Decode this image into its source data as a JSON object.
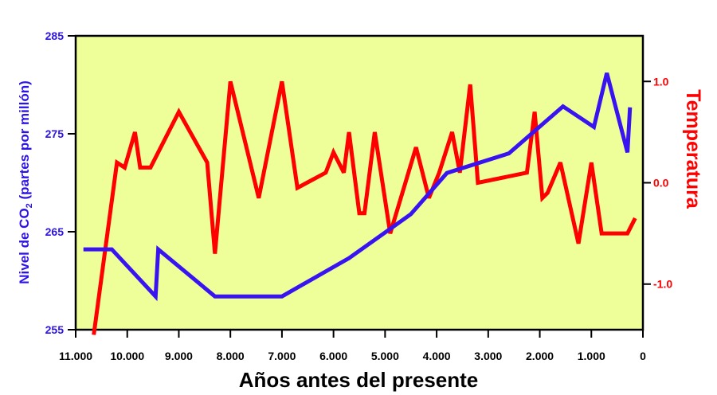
{
  "chart_data": {
    "type": "line",
    "title": "",
    "colors": {
      "plot_bg": "#eeff99",
      "co2": "#3a14f0",
      "temperature": "#ff0000"
    },
    "xlabel": "Años antes del presente",
    "ylabel_left_parts": {
      "before": "Nivel de CO",
      "subscript": "2",
      "after": " (partes por millón)"
    },
    "ylabel_right": "Temperatura",
    "x_reversed": true,
    "xlim": [
      11000,
      0
    ],
    "x_ticks": [
      11000,
      10000,
      9000,
      8000,
      7000,
      6000,
      5000,
      4000,
      3000,
      2000,
      1000,
      0
    ],
    "x_tick_labels": [
      "11.000",
      "10.000",
      "9.000",
      "8.000",
      "7.000",
      "6.000",
      "5.000",
      "4.000",
      "3.000",
      "2.000",
      "1.000",
      "0"
    ],
    "y_left_lim": [
      255,
      285
    ],
    "y_left_ticks": [
      255,
      265,
      275,
      285
    ],
    "y_left_tick_labels": [
      "255",
      "265",
      "275",
      "285"
    ],
    "y_right_lim": [
      -1.45,
      1.45
    ],
    "y_right_ticks": [
      1.0,
      0.0,
      -1.0
    ],
    "y_right_tick_labels": [
      "1.0",
      "0.0",
      "-1.0"
    ],
    "series": [
      {
        "axis": "left",
        "x": [
          10850,
          10300,
          9450,
          9400,
          8300,
          7000,
          5700,
          4500,
          3800,
          2600,
          1550,
          950,
          700,
          300,
          250
        ],
        "y": [
          263.2,
          263.2,
          258.4,
          263.2,
          258.4,
          258.4,
          262.3,
          266.8,
          271.0,
          273.0,
          277.8,
          275.7,
          281.2,
          273.1,
          277.7
        ]
      },
      {
        "axis": "right",
        "x": [
          10650,
          10200,
          10050,
          9850,
          9750,
          9550,
          9000,
          8450,
          8300,
          8000,
          7450,
          7000,
          6700,
          6150,
          6000,
          5800,
          5700,
          5500,
          5400,
          5200,
          4900,
          4400,
          4150,
          3950,
          3700,
          3550,
          3350,
          3200,
          2250,
          2100,
          1950,
          1850,
          1600,
          1250,
          1000,
          800,
          300,
          150
        ],
        "y": [
          -1.5,
          0.2,
          0.15,
          0.5,
          0.15,
          0.15,
          0.7,
          0.2,
          -0.7,
          1.0,
          -0.15,
          1.0,
          -0.05,
          0.1,
          0.3,
          0.1,
          0.5,
          -0.3,
          -0.3,
          0.5,
          -0.5,
          0.35,
          -0.15,
          0.1,
          0.5,
          0.1,
          0.97,
          0.0,
          0.1,
          0.7,
          -0.15,
          -0.1,
          0.2,
          -0.6,
          0.2,
          -0.5,
          -0.5,
          -0.35
        ]
      }
    ]
  }
}
